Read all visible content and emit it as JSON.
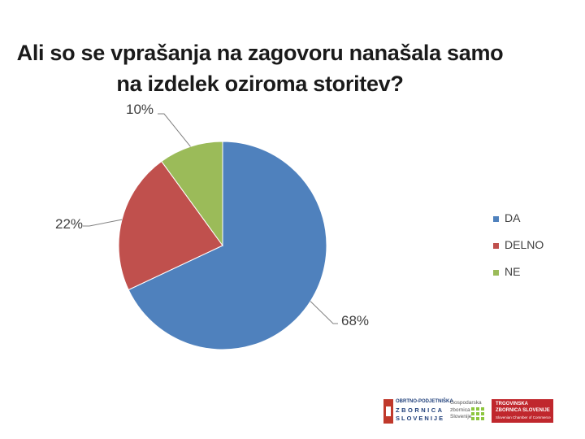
{
  "slide": {
    "title_line1": "Ali so se vprašanja na zagovoru nanašala samo",
    "title_line2": "na izdelek oziroma storitev?"
  },
  "chart_data": {
    "type": "pie",
    "title": "Ali so se vprašanja na zagovoru nanašala samo na izdelek oziroma storitev?",
    "categories": [
      "DA",
      "DELNO",
      "NE"
    ],
    "values": [
      68,
      22,
      10
    ],
    "data_labels": [
      "68%",
      "22%",
      "10%"
    ],
    "colors": [
      "#4f81bd",
      "#c0504d",
      "#9bbb59"
    ],
    "legend_position": "right",
    "start_angle_deg": 0,
    "direction": "clockwise"
  },
  "footer": {
    "logo_ozs": {
      "line1": "OBRTNO-PODJETNIŠKA",
      "line2": "ZBORNICA",
      "line3": "SLOVENIJE",
      "icon": "ozs-logo-icon"
    },
    "logo_gzs": {
      "text": "Gospodarska zbornica Slovenije",
      "icon": "gzs-grid-icon"
    },
    "logo_tzs": {
      "line1": "TRGOVINSKA",
      "line2": "ZBORNICA SLOVENIJE",
      "line3": "Slovenian Chamber of Commerce"
    }
  }
}
